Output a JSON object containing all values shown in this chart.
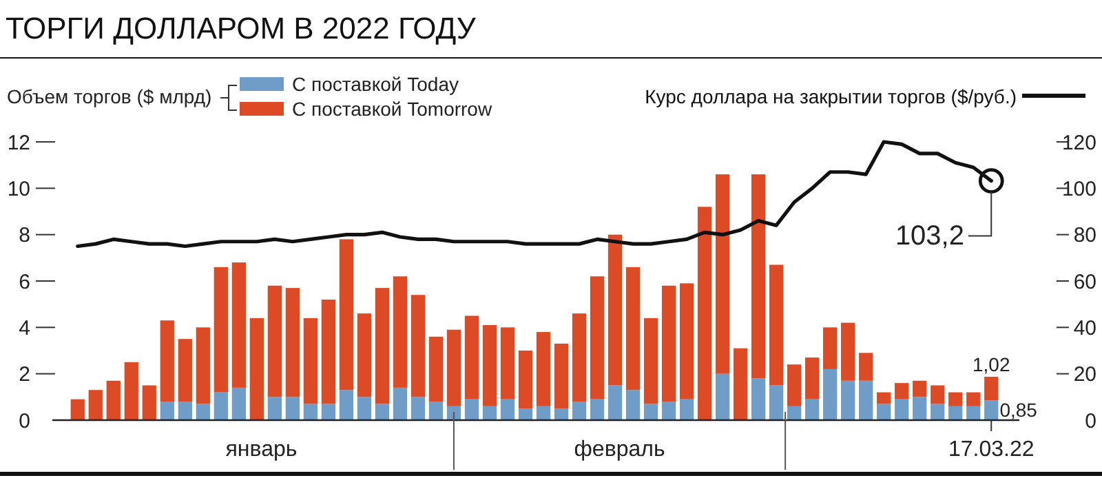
{
  "chart_data": {
    "type": "bar",
    "stacked": true,
    "title": "ТОРГИ ДОЛЛАРОМ В 2022 ГОДУ",
    "ylabel": "Объем торгов ($ млрд)",
    "legend": "top left",
    "categories": [
      null,
      null,
      null,
      null,
      null,
      null,
      null,
      null,
      null,
      null,
      null,
      null,
      null,
      null,
      null,
      null,
      null,
      null,
      null,
      null,
      null,
      null,
      null,
      null,
      null,
      null,
      null,
      null,
      null,
      null,
      null,
      null,
      null,
      null,
      null,
      null,
      null,
      null,
      null,
      null,
      null,
      null,
      null,
      null,
      null,
      null,
      null,
      null,
      null,
      null,
      null,
      "17.03.22"
    ],
    "annotations": [
      "январь",
      "февраль"
    ],
    "ylim": [
      0,
      12
    ],
    "yticks": [
      0,
      2,
      4,
      6,
      8,
      10,
      12
    ],
    "y2lim": [
      0,
      120
    ],
    "y2ticks": [
      0,
      20,
      40,
      60,
      80,
      100,
      120
    ],
    "series": [
      {
        "name": "С поставкой Today",
        "color": "#6f9dc8",
        "values": [
          0,
          0,
          0,
          0,
          0,
          0.8,
          0.8,
          0.7,
          1.2,
          1.4,
          0,
          1.0,
          1.0,
          0.7,
          0.7,
          1.3,
          1.0,
          0.7,
          1.4,
          1.0,
          0.8,
          0.6,
          0.9,
          0.6,
          0.9,
          0.5,
          0.6,
          0.5,
          0.8,
          0.9,
          1.5,
          1.3,
          0.7,
          0.8,
          0.9,
          0,
          2.0,
          0,
          1.8,
          1.5,
          0.6,
          0.9,
          2.2,
          1.7,
          1.7,
          0.7,
          0.9,
          1.0,
          0.7,
          0.6,
          0.6,
          0.85
        ],
        "value_labels": [
          null,
          null,
          null,
          null,
          null,
          null,
          null,
          null,
          null,
          null,
          null,
          null,
          null,
          null,
          null,
          null,
          null,
          null,
          null,
          null,
          null,
          null,
          null,
          null,
          null,
          null,
          null,
          null,
          null,
          null,
          null,
          null,
          null,
          null,
          null,
          null,
          null,
          null,
          null,
          null,
          null,
          null,
          null,
          null,
          null,
          null,
          null,
          null,
          null,
          null,
          null,
          "0,85"
        ]
      },
      {
        "name": "С поставкой Tomorrow",
        "color": "#dc4a26",
        "values": [
          0.9,
          1.3,
          1.7,
          2.5,
          1.5,
          3.5,
          2.7,
          3.3,
          5.4,
          5.4,
          4.4,
          4.8,
          4.7,
          3.7,
          4.5,
          6.5,
          3.6,
          5.0,
          4.8,
          4.4,
          2.8,
          3.3,
          3.6,
          3.5,
          3.1,
          2.5,
          3.2,
          2.8,
          3.8,
          5.3,
          6.5,
          5.3,
          3.7,
          5.0,
          5.0,
          9.2,
          8.6,
          3.1,
          8.8,
          5.2,
          1.8,
          1.8,
          1.8,
          2.5,
          1.2,
          0.5,
          0.7,
          0.7,
          0.8,
          0.6,
          0.6,
          1.02
        ],
        "value_labels": [
          null,
          null,
          null,
          null,
          null,
          null,
          null,
          null,
          null,
          null,
          null,
          null,
          null,
          null,
          null,
          null,
          null,
          null,
          null,
          null,
          null,
          null,
          null,
          null,
          null,
          null,
          null,
          null,
          null,
          null,
          null,
          null,
          null,
          null,
          null,
          null,
          null,
          null,
          null,
          null,
          null,
          null,
          null,
          null,
          null,
          null,
          null,
          null,
          null,
          null,
          null,
          "1,02"
        ]
      },
      {
        "name": "Курс доллара на закрытии торгов ($/руб.)",
        "type": "line",
        "axis": "y2",
        "color": "#111111",
        "values": [
          75,
          76,
          78,
          77,
          76,
          76,
          75,
          76,
          77,
          77,
          77,
          78,
          77,
          78,
          79,
          80,
          80,
          81,
          79,
          78,
          78,
          77,
          77,
          77,
          77,
          76,
          76,
          76,
          76,
          78,
          77,
          76,
          76,
          77,
          78,
          81,
          80,
          82,
          86,
          84,
          94,
          100,
          107,
          107,
          106,
          120,
          119,
          115,
          115,
          111,
          109,
          103.2
        ],
        "value_labels": [
          null,
          null,
          null,
          null,
          null,
          null,
          null,
          null,
          null,
          null,
          null,
          null,
          null,
          null,
          null,
          null,
          null,
          null,
          null,
          null,
          null,
          null,
          null,
          null,
          null,
          null,
          null,
          null,
          null,
          null,
          null,
          null,
          null,
          null,
          null,
          null,
          null,
          null,
          null,
          null,
          null,
          null,
          null,
          null,
          null,
          null,
          null,
          null,
          null,
          null,
          null,
          "103,2"
        ]
      }
    ]
  }
}
